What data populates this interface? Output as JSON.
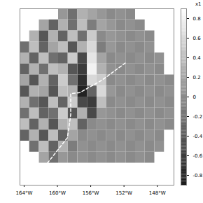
{
  "chart_data": {
    "type": "heatmap",
    "tick_labels": "x",
    "xlim": [
      -164.5,
      -146
    ],
    "xticks": [
      {
        "value": -164,
        "label": "164°W"
      },
      {
        "value": -160,
        "label": "160°W"
      },
      {
        "value": -156,
        "label": "156°W"
      },
      {
        "value": -152,
        "label": "152°W"
      },
      {
        "value": -148,
        "label": "148°W"
      }
    ],
    "ylim": [
      0,
      16
    ],
    "x": [
      -163.92,
      -162.77,
      -161.61,
      -160.45,
      -159.3,
      -158.14,
      -156.98,
      -155.83,
      -154.67,
      -153.52,
      -152.36,
      -151.2,
      -150.05,
      -148.89,
      -147.73,
      -146.58
    ],
    "y": [
      0.5,
      1.5,
      2.5,
      3.5,
      4.5,
      5.5,
      6.5,
      7.5,
      8.5,
      9.5,
      10.5,
      11.5,
      12.5,
      13.5
    ],
    "cells": [
      [
        null,
        null,
        null,
        null,
        0.1,
        -0.2,
        0.3,
        0.2,
        0.1,
        0.0,
        0.05,
        0.0,
        null,
        null,
        null,
        null
      ],
      [
        null,
        null,
        0.2,
        -0.3,
        0.3,
        -0.2,
        0.4,
        -0.1,
        0.2,
        0.1,
        0.0,
        0.05,
        0.0,
        null,
        null,
        null
      ],
      [
        null,
        0.3,
        -0.4,
        0.3,
        -0.3,
        0.4,
        -0.2,
        0.5,
        0.0,
        0.1,
        0.05,
        0.0,
        0.05,
        0.0,
        null,
        null
      ],
      [
        -0.2,
        0.4,
        -0.3,
        0.2,
        0.4,
        -0.4,
        0.3,
        0.6,
        -0.1,
        0.1,
        0.0,
        0.05,
        0.0,
        0.05,
        null,
        null
      ],
      [
        0.3,
        -0.3,
        0.4,
        -0.2,
        -0.3,
        0.5,
        -0.5,
        0.7,
        0.2,
        0.0,
        0.05,
        0.0,
        0.05,
        0.0,
        0.05,
        null
      ],
      [
        -0.3,
        0.3,
        -0.2,
        0.4,
        0.3,
        -0.4,
        -0.6,
        0.8,
        0.3,
        0.05,
        0.0,
        0.05,
        0.0,
        0.05,
        0.0,
        null
      ],
      [
        0.2,
        -0.4,
        0.3,
        -0.3,
        0.5,
        -0.2,
        -0.7,
        0.6,
        0.5,
        0.0,
        0.05,
        0.0,
        0.05,
        0.0,
        0.05,
        0.0
      ],
      [
        -0.4,
        0.3,
        0.2,
        -0.4,
        0.4,
        0.3,
        -0.8,
        -0.3,
        0.6,
        0.1,
        0.0,
        0.05,
        0.0,
        0.05,
        0.0,
        0.05
      ],
      [
        0.3,
        -0.2,
        -0.4,
        0.4,
        -0.3,
        0.5,
        -0.5,
        -0.6,
        0.4,
        0.0,
        0.05,
        0.0,
        0.05,
        0.0,
        0.05,
        0.0
      ],
      [
        -0.2,
        0.4,
        -0.3,
        -0.2,
        0.5,
        -0.4,
        0.3,
        -0.5,
        0.1,
        0.05,
        0.0,
        0.05,
        0.0,
        0.05,
        0.0,
        0.05
      ],
      [
        0.4,
        -0.3,
        0.3,
        -0.4,
        0.3,
        0.4,
        -0.3,
        0.0,
        0.05,
        0.0,
        0.05,
        0.0,
        0.05,
        0.0,
        0.05,
        0.0
      ],
      [
        -0.3,
        0.3,
        -0.4,
        0.4,
        -0.3,
        0.2,
        0.0,
        0.05,
        0.0,
        0.05,
        0.0,
        0.05,
        0.0,
        0.05,
        0.0,
        null
      ],
      [
        null,
        -0.2,
        0.4,
        -0.3,
        0.3,
        -0.1,
        0.05,
        0.0,
        0.05,
        0.0,
        0.05,
        0.0,
        0.05,
        0.0,
        0.05,
        null
      ],
      [
        null,
        null,
        0.2,
        -0.2,
        0.1,
        0.0,
        0.05,
        0.0,
        0.05,
        0.0,
        0.05,
        0.0,
        0.05,
        0.0,
        null,
        null
      ]
    ],
    "boundary": {
      "x": [
        -161.2,
        -158.8,
        -158.4,
        -158.4,
        -157.3,
        -154.7,
        -151.8
      ],
      "y": [
        14.0,
        11.7,
        9.6,
        7.7,
        7.6,
        6.5,
        4.9
      ],
      "color": "#ffffff",
      "line_style": "dashed"
    },
    "colorbar": {
      "lim": [
        -0.9,
        0.9
      ],
      "ticks": [
        0.8,
        0.6,
        0.4,
        0.2,
        0,
        -0.2,
        -0.4,
        -0.6,
        -0.8
      ],
      "label": "x1"
    }
  }
}
